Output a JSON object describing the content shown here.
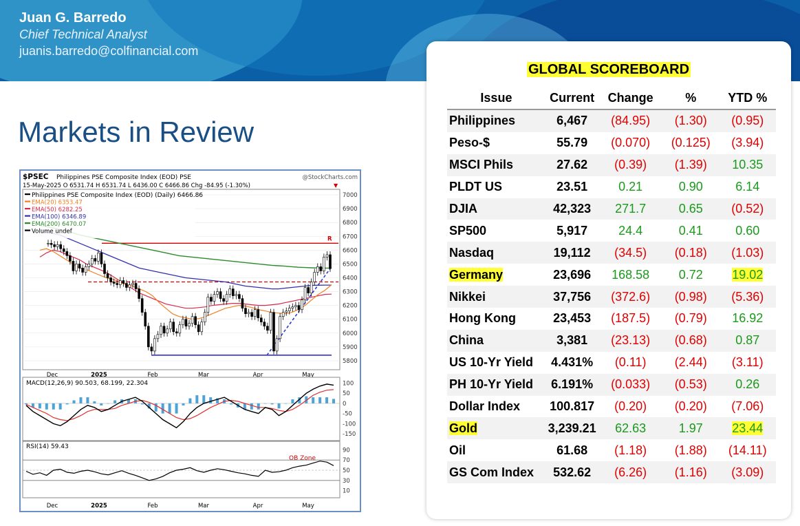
{
  "header": {
    "name": "Juan G. Barredo",
    "role": "Chief Technical Analyst",
    "email": "juanis.barredo@colfinancial.com"
  },
  "page_title": "Markets in Review",
  "stock_chart": {
    "symbol": "$PSEC",
    "title": "Philippines PSE Composite Index (EOD) PSE",
    "source": "@StockCharts.com",
    "ohlc_line": "15-May-2025   O 6531.74  H 6531.74  L 6436.00  C 6466.86  Chg -84.95 (-1.30%)",
    "legend": [
      {
        "label": "Philippines PSE Composite Index (EOD) (Daily) 6466.86",
        "color": "#000000"
      },
      {
        "label": "EMA(20) 6353.47",
        "color": "#f08020"
      },
      {
        "label": "EMA(50) 6282.25",
        "color": "#d8294a"
      },
      {
        "label": "EMA(100) 6346.89",
        "color": "#3030b0"
      },
      {
        "label": "EMA(200) 6470.07",
        "color": "#2c8a2c"
      },
      {
        "label": "Volume undef",
        "color": "#000000"
      }
    ],
    "price_axis": [
      "7000",
      "6900",
      "6800",
      "6700",
      "6600",
      "6500",
      "6400",
      "6300",
      "6200",
      "6100",
      "6000",
      "5900",
      "5800"
    ],
    "price_range": [
      5750,
      7025
    ],
    "x_labels": [
      "Dec",
      "2025",
      "Feb",
      "Mar",
      "Apr",
      "May"
    ],
    "resistance_level": 6650,
    "support_level": 6370,
    "low_level": 5840,
    "marker_r": "R",
    "close_points": [
      6650,
      6640,
      6625,
      6640,
      6610,
      6590,
      6560,
      6520,
      6450,
      6500,
      6470,
      6440,
      6480,
      6500,
      6540,
      6520,
      6580,
      6500,
      6430,
      6400,
      6370,
      6360,
      6350,
      6380,
      6360,
      6330,
      6350,
      6360,
      6320,
      6250,
      6150,
      6050,
      5900,
      5870,
      5960,
      5990,
      6050,
      6000,
      6030,
      6080,
      6010,
      6000,
      6060,
      6100,
      6050,
      6070,
      6120,
      6060,
      6010,
      6080,
      6150,
      6260,
      6230,
      6280,
      6300,
      6250,
      6230,
      6280,
      6320,
      6270,
      6280,
      6250,
      6180,
      6140,
      6150,
      6120,
      6170,
      6110,
      6080,
      6050,
      6020,
      6150,
      5870,
      5960,
      6120,
      6150,
      6160,
      6180,
      6190,
      6200,
      6170,
      6240,
      6330,
      6290,
      6370,
      6440,
      6480,
      6450,
      6550,
      6567,
      6467
    ],
    "ema20": [
      6600,
      6610,
      6590,
      6560,
      6530,
      6500,
      6470,
      6460,
      6440,
      6420,
      6400,
      6390,
      6370,
      6350,
      6340,
      6320,
      6300,
      6270,
      6220,
      6180,
      6140,
      6120,
      6110,
      6100,
      6105,
      6120,
      6140,
      6160,
      6180,
      6190,
      6200,
      6195,
      6185,
      6170,
      6160,
      6150,
      6145,
      6140,
      6150,
      6170,
      6200,
      6240,
      6280,
      6310,
      6350
    ],
    "ema50": [
      6550,
      6580,
      6600,
      6590,
      6570,
      6550,
      6530,
      6500,
      6480,
      6460,
      6440,
      6410,
      6380,
      6350,
      6320,
      6290,
      6270,
      6250,
      6230,
      6210,
      6200,
      6190,
      6180,
      6180,
      6185,
      6190,
      6200,
      6205,
      6210,
      6215,
      6215,
      6210,
      6205,
      6200,
      6200,
      6205,
      6210,
      6220,
      6230,
      6240,
      6250,
      6260,
      6270,
      6280,
      6282
    ],
    "ema100": [
      6750,
      6730,
      6720,
      6710,
      6690,
      6670,
      6650,
      6630,
      6610,
      6590,
      6570,
      6550,
      6530,
      6510,
      6490,
      6470,
      6460,
      6450,
      6440,
      6430,
      6420,
      6410,
      6400,
      6395,
      6390,
      6385,
      6380,
      6375,
      6370,
      6360,
      6350,
      6340,
      6335,
      6330,
      6325,
      6320,
      6320,
      6325,
      6330,
      6335,
      6340,
      6345,
      6346,
      6347,
      6347
    ],
    "ema200": [
      6780,
      6770,
      6760,
      6750,
      6740,
      6725,
      6710,
      6700,
      6690,
      6680,
      6670,
      6660,
      6650,
      6640,
      6630,
      6620,
      6610,
      6600,
      6590,
      6580,
      6570,
      6560,
      6555,
      6550,
      6545,
      6540,
      6535,
      6530,
      6525,
      6520,
      6515,
      6510,
      6505,
      6500,
      6495,
      6490,
      6487,
      6484,
      6480,
      6476,
      6474,
      6472,
      6471,
      6470,
      6470
    ],
    "macd_label": "MACD(12,26,9) 90.503, 68.199, 22.304",
    "macd_values": {
      "macd": "90.503",
      "signal": "68.199",
      "histogram": "22.304"
    },
    "macd_axis": [
      "100",
      "50",
      "0",
      "-50",
      "-100",
      "-150"
    ],
    "macd_line": [
      -10,
      -40,
      -60,
      -80,
      -100,
      -110,
      -90,
      -60,
      -30,
      -10,
      -20,
      -40,
      -30,
      -10,
      10,
      20,
      30,
      10,
      -20,
      -50,
      -80,
      -100,
      -120,
      -90,
      -50,
      -20,
      0,
      10,
      20,
      30,
      10,
      -10,
      -30,
      -40,
      -50,
      -20,
      -30,
      -60,
      -40,
      -10,
      20,
      50,
      70,
      85,
      95,
      90
    ],
    "signal_line": [
      -5,
      -20,
      -35,
      -50,
      -70,
      -80,
      -85,
      -75,
      -60,
      -40,
      -30,
      -30,
      -30,
      -25,
      -10,
      0,
      10,
      15,
      5,
      -10,
      -30,
      -50,
      -70,
      -80,
      -75,
      -60,
      -40,
      -20,
      -5,
      10,
      15,
      10,
      0,
      -10,
      -20,
      -20,
      -25,
      -35,
      -40,
      -30,
      -10,
      15,
      40,
      55,
      65,
      68
    ],
    "rsi_label": "RSI(14) 59.43",
    "rsi_axis": [
      "90",
      "70",
      "50",
      "30",
      "10"
    ],
    "rsi_zone_label": "OB Zone",
    "rsi_values": [
      48,
      42,
      45,
      40,
      50,
      52,
      46,
      44,
      48,
      50,
      47,
      43,
      41,
      45,
      49,
      44,
      40,
      35,
      30,
      33,
      38,
      45,
      50,
      52,
      55,
      49,
      46,
      50,
      53,
      51,
      48,
      45,
      43,
      40,
      38,
      50,
      46,
      47,
      50,
      55,
      58,
      60,
      64,
      68,
      66,
      59
    ]
  },
  "scoreboard": {
    "title": "GLOBAL SCOREBOARD",
    "columns": [
      "Issue",
      "Current",
      "Change",
      "%",
      "YTD %"
    ],
    "rows": [
      {
        "issue": "Philippines",
        "current": "6,467",
        "change": "(84.95)",
        "pct": "(1.30)",
        "ytd": "(0.95)",
        "change_color": "neg",
        "pct_color": "neg",
        "ytd_color": "neg",
        "highlight": false
      },
      {
        "issue": "Peso-$",
        "current": "55.79",
        "change": "(0.070)",
        "pct": "(0.125)",
        "ytd": "(3.94)",
        "change_color": "neg",
        "pct_color": "neg",
        "ytd_color": "neg",
        "highlight": false
      },
      {
        "issue": "MSCI Phils",
        "current": "27.62",
        "change": "(0.39)",
        "pct": "(1.39)",
        "ytd": "10.35",
        "change_color": "neg",
        "pct_color": "neg",
        "ytd_color": "pos",
        "highlight": false
      },
      {
        "issue": "PLDT US",
        "current": "23.51",
        "change": "0.21",
        "pct": "0.90",
        "ytd": "6.14",
        "change_color": "pos",
        "pct_color": "pos",
        "ytd_color": "pos",
        "highlight": false
      },
      {
        "issue": "DJIA",
        "current": "42,323",
        "change": "271.7",
        "pct": "0.65",
        "ytd": "(0.52)",
        "change_color": "pos",
        "pct_color": "pos",
        "ytd_color": "neg",
        "highlight": false
      },
      {
        "issue": "SP500",
        "current": "5,917",
        "change": "24.4",
        "pct": "0.41",
        "ytd": "0.60",
        "change_color": "pos",
        "pct_color": "pos",
        "ytd_color": "pos",
        "highlight": false
      },
      {
        "issue": "Nasdaq",
        "current": "19,112",
        "change": "(34.5)",
        "pct": "(0.18)",
        "ytd": "(1.03)",
        "change_color": "neg",
        "pct_color": "neg",
        "ytd_color": "neg",
        "highlight": false
      },
      {
        "issue": "Germany",
        "current": "23,696",
        "change": "168.58",
        "pct": "0.72",
        "ytd": "19.02",
        "change_color": "pos",
        "pct_color": "pos",
        "ytd_color": "pos",
        "highlight": true
      },
      {
        "issue": "Nikkei",
        "current": "37,756",
        "change": "(372.6)",
        "pct": "(0.98)",
        "ytd": "(5.36)",
        "change_color": "neg",
        "pct_color": "neg",
        "ytd_color": "neg",
        "highlight": false
      },
      {
        "issue": "Hong Kong",
        "current": "23,453",
        "change": "(187.5)",
        "pct": "(0.79)",
        "ytd": "16.92",
        "change_color": "neg",
        "pct_color": "neg",
        "ytd_color": "pos",
        "highlight": false
      },
      {
        "issue": "China",
        "current": "3,381",
        "change": "(23.13)",
        "pct": "(0.68)",
        "ytd": "0.87",
        "change_color": "neg",
        "pct_color": "neg",
        "ytd_color": "pos",
        "highlight": false
      },
      {
        "issue": "US 10-Yr Yield",
        "current": "4.431%",
        "change": "(0.11)",
        "pct": "(2.44)",
        "ytd": "(3.11)",
        "change_color": "neg",
        "pct_color": "neg",
        "ytd_color": "neg",
        "highlight": false
      },
      {
        "issue": "PH 10-Yr Yield",
        "current": "6.191%",
        "change": "(0.033)",
        "pct": "(0.53)",
        "ytd": "0.26",
        "change_color": "neg",
        "pct_color": "neg",
        "ytd_color": "pos",
        "highlight": false
      },
      {
        "issue": "Dollar Index",
        "current": "100.817",
        "change": "(0.20)",
        "pct": "(0.20)",
        "ytd": "(7.06)",
        "change_color": "neg",
        "pct_color": "neg",
        "ytd_color": "neg",
        "highlight": false
      },
      {
        "issue": "Gold",
        "current": "3,239.21",
        "change": "62.63",
        "pct": "1.97",
        "ytd": "23.44",
        "change_color": "pos",
        "pct_color": "pos",
        "ytd_color": "pos",
        "highlight": true
      },
      {
        "issue": "Oil",
        "current": "61.68",
        "change": "(1.18)",
        "pct": "(1.88)",
        "ytd": "(14.11)",
        "change_color": "neg",
        "pct_color": "neg",
        "ytd_color": "neg",
        "highlight": false
      },
      {
        "issue": "GS Com Index",
        "current": "532.62",
        "change": "(6.26)",
        "pct": "(1.16)",
        "ytd": "(3.09)",
        "change_color": "neg",
        "pct_color": "neg",
        "ytd_color": "neg",
        "highlight": false
      }
    ]
  },
  "colors": {
    "banner": "#0a5fa6",
    "title_blue": "#1a4f86",
    "highlight": "#ffff33",
    "negative": "#e00000",
    "positive": "#1a9a1a"
  }
}
